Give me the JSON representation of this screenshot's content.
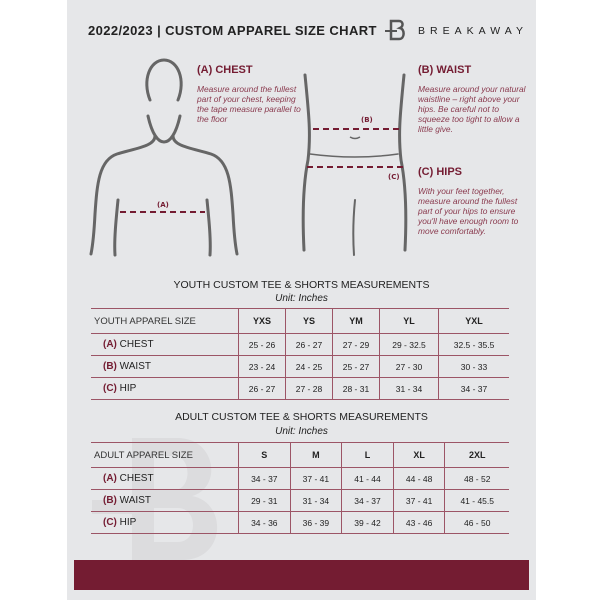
{
  "header": {
    "title": "2022/2023  |  CUSTOM APPAREL SIZE CHART",
    "brand": "BREAKAWAY",
    "logo_letter": "B"
  },
  "guide": {
    "chest": {
      "heading": "(A) CHEST",
      "text": "Measure around the fullest part of your chest, keeping the tape measure parallel to the floor",
      "marker": "(A)"
    },
    "waist": {
      "heading": "(B) WAIST",
      "text": "Measure around your natural waistline – right above your hips. Be careful not to squeeze too tight to allow a little give.",
      "marker": "(B)"
    },
    "hips": {
      "heading": "(C) HIPS",
      "text": "With your feet together, measure around the fullest part of your hips to ensure you'll have enough room to move comfortably.",
      "marker": "(C)"
    }
  },
  "accent": "#741c32",
  "youth": {
    "title": "YOUTH CUSTOM TEE & SHORTS MEASUREMENTS",
    "unit": "Unit: Inches",
    "header": "YOUTH APPAREL SIZE",
    "sizes": [
      "YXS",
      "YS",
      "YM",
      "YL",
      "YXL"
    ],
    "rows": [
      {
        "letter": "(A)",
        "name": "CHEST",
        "values": [
          "25 - 26",
          "26 - 27",
          "27 - 29",
          "29 - 32.5",
          "32.5 - 35.5"
        ]
      },
      {
        "letter": "(B)",
        "name": "WAIST",
        "values": [
          "23 - 24",
          "24 - 25",
          "25 - 27",
          "27 - 30",
          "30 - 33"
        ]
      },
      {
        "letter": "(C)",
        "name": "HIP",
        "values": [
          "26 - 27",
          "27 - 28",
          "28 - 31",
          "31 - 34",
          "34 - 37"
        ]
      }
    ]
  },
  "adult": {
    "title": "ADULT CUSTOM TEE & SHORTS MEASUREMENTS",
    "unit": "Unit: Inches",
    "header": "ADULT APPAREL SIZE",
    "sizes": [
      "S",
      "M",
      "L",
      "XL",
      "2XL"
    ],
    "rows": [
      {
        "letter": "(A)",
        "name": "CHEST",
        "values": [
          "34 - 37",
          "37 - 41",
          "41 - 44",
          "44 - 48",
          "48 - 52"
        ]
      },
      {
        "letter": "(B)",
        "name": "WAIST",
        "values": [
          "29 - 31",
          "31 - 34",
          "34 - 37",
          "37 - 41",
          "41 - 45.5"
        ]
      },
      {
        "letter": "(C)",
        "name": "HIP",
        "values": [
          "34 - 36",
          "36 - 39",
          "39 - 42",
          "43 - 46",
          "46 - 50"
        ]
      }
    ]
  }
}
